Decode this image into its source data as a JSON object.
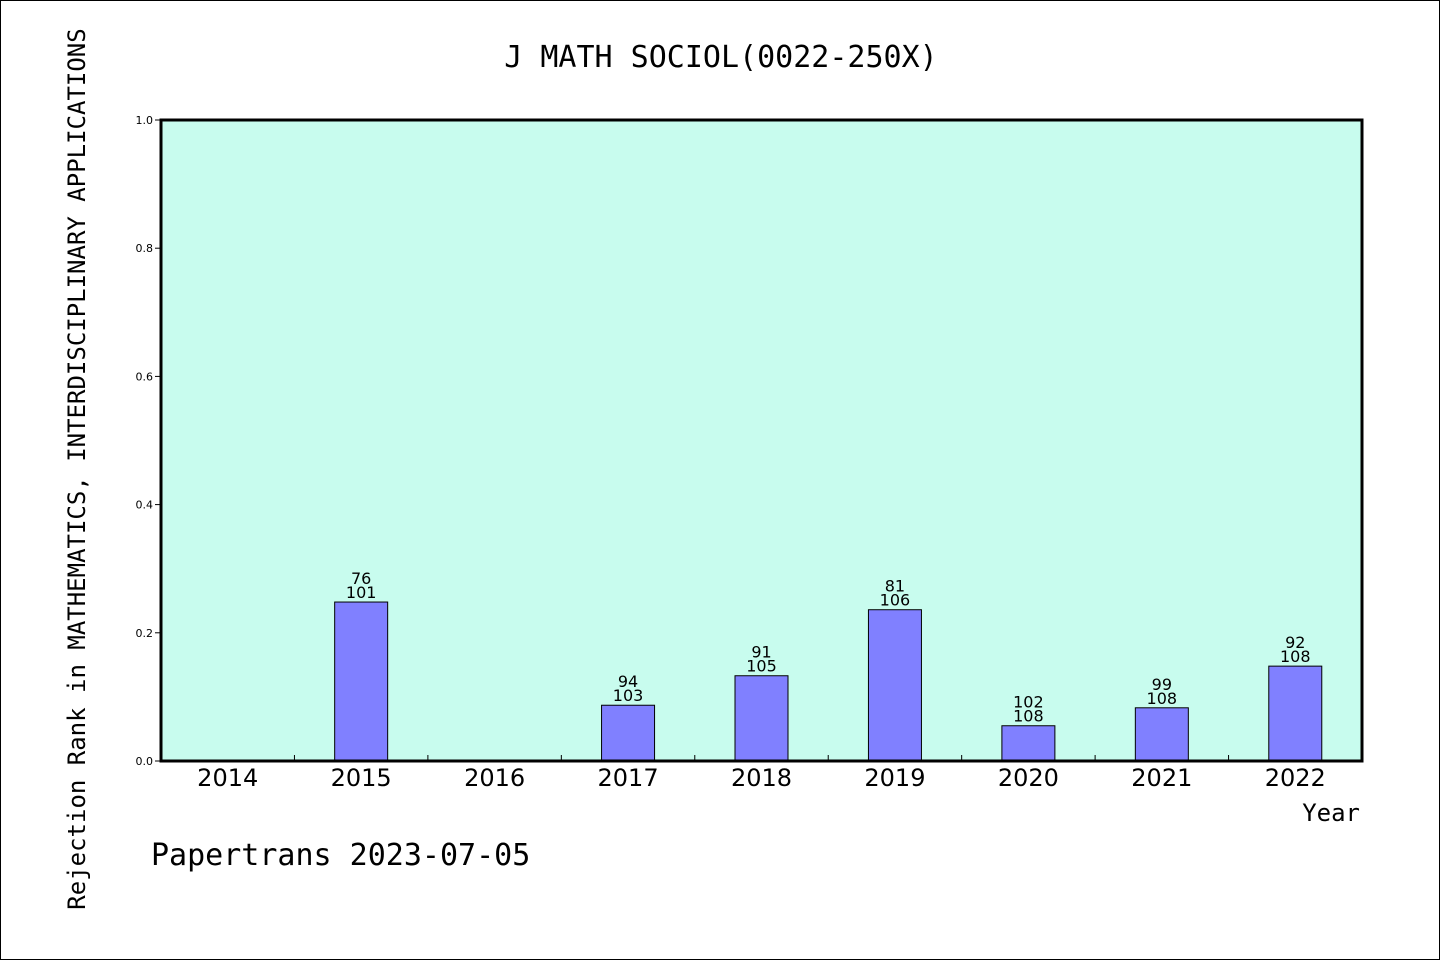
{
  "chart_data": {
    "type": "bar",
    "title": "J MATH SOCIOL(0022-250X)",
    "xlabel": "Year",
    "ylabel": "Rejection Rank in MATHEMATICS, INTERDISCIPLINARY APPLICATIONS",
    "categories": [
      "2014",
      "2015",
      "2016",
      "2017",
      "2018",
      "2019",
      "2020",
      "2021",
      "2022"
    ],
    "values": [
      null,
      0.248,
      null,
      0.087,
      0.133,
      0.236,
      0.055,
      0.083,
      0.148
    ],
    "rank_labels": [
      null,
      "76",
      null,
      "94",
      "91",
      "81",
      "102",
      "99",
      "92"
    ],
    "total_labels": [
      null,
      "101",
      null,
      "103",
      "105",
      "106",
      "108",
      "108",
      "108"
    ],
    "yticks": [
      "0.0",
      "0.2",
      "0.4",
      "0.6",
      "0.8",
      "1.0"
    ],
    "ylim": [
      0,
      1
    ],
    "grid": false,
    "colors": {
      "plot_background": "#c8fcee",
      "bar_fill": "#8080ff",
      "bar_stroke": "#000000"
    }
  },
  "footer": "Papertrans 2023-07-05"
}
